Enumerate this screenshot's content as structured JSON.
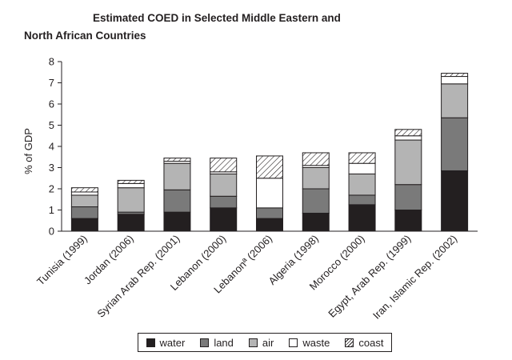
{
  "chart_data": {
    "type": "bar",
    "stacked": true,
    "title_line1": "Estimated COED in Selected Middle Eastern and",
    "title_line2": "North African Countries",
    "xlabel": "",
    "ylabel": "% of GDP",
    "ylim": [
      0,
      8
    ],
    "yticks": [
      0,
      1,
      2,
      3,
      4,
      5,
      6,
      7,
      8
    ],
    "grid": false,
    "legend_position": "bottom",
    "categories": [
      "Tunisia (1999)",
      "Jordan (2006)",
      "Syrian Arab Rep. (2001)",
      "Lebanon (2000)",
      "Lebanonª (2006)",
      "Algeria (1998)",
      "Morocco (2000)",
      "Egypt, Arab Rep. (1999)",
      "Iran, Islamic Rep. (2002)"
    ],
    "series": [
      {
        "name": "water",
        "color": "#231f20",
        "pattern": "solid",
        "values": [
          0.6,
          0.8,
          0.9,
          1.1,
          0.6,
          0.85,
          1.25,
          1.0,
          2.85
        ]
      },
      {
        "name": "land",
        "color": "#7a7a7a",
        "pattern": "solid",
        "values": [
          0.55,
          0.1,
          1.05,
          0.55,
          0.5,
          1.15,
          0.45,
          1.2,
          2.5
        ]
      },
      {
        "name": "air",
        "color": "#b4b4b4",
        "pattern": "solid",
        "values": [
          0.55,
          1.15,
          1.25,
          1.05,
          0.0,
          1.0,
          1.0,
          2.1,
          1.6
        ]
      },
      {
        "name": "waste",
        "color": "#ffffff",
        "pattern": "solid",
        "values": [
          0.15,
          0.2,
          0.1,
          0.1,
          1.4,
          0.1,
          0.5,
          0.2,
          0.35
        ]
      },
      {
        "name": "coast",
        "color": "#ffffff",
        "pattern": "hatch",
        "values": [
          0.2,
          0.15,
          0.15,
          0.65,
          1.05,
          0.6,
          0.5,
          0.3,
          0.15
        ]
      }
    ]
  },
  "legend": {
    "items": [
      {
        "label": "water"
      },
      {
        "label": "land"
      },
      {
        "label": "air"
      },
      {
        "label": "waste"
      },
      {
        "label": "coast"
      }
    ]
  }
}
